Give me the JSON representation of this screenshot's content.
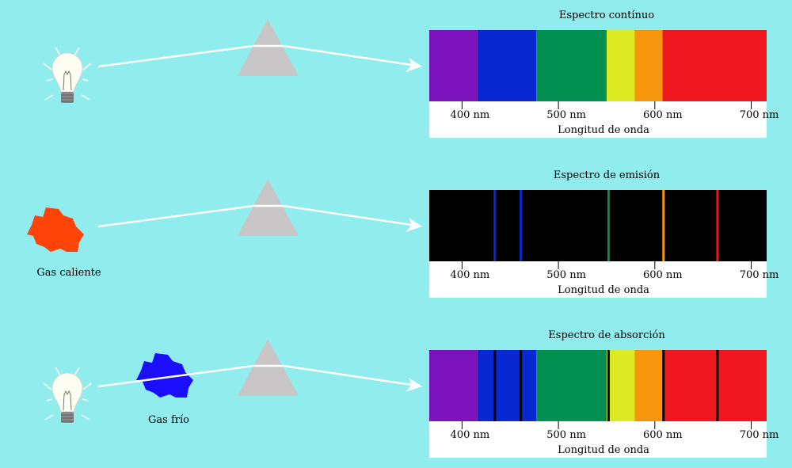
{
  "panels": [
    {
      "id": "continuous",
      "title": "Espectro contínuo",
      "source": "bulb",
      "mode": "continuous",
      "lines": []
    },
    {
      "id": "emission",
      "title": "Espectro de emisión",
      "source": "hot-gas",
      "source_label": "Gas caliente",
      "mode": "emission",
      "lines": [
        {
          "nm": 434,
          "color": "#0a28d2"
        },
        {
          "nm": 461,
          "color": "#0a28d2"
        },
        {
          "nm": 552,
          "color": "#028f52"
        },
        {
          "nm": 609,
          "color": "#f7960c"
        },
        {
          "nm": 665,
          "color": "#e7151e"
        }
      ]
    },
    {
      "id": "absorption",
      "title": "Espectro de absorción",
      "source": "bulb",
      "cold_gas_label": "Gas frío",
      "mode": "absorption",
      "lines": [
        {
          "nm": 434,
          "color": "#000000"
        },
        {
          "nm": 461,
          "color": "#000000"
        },
        {
          "nm": 552,
          "color": "#000000"
        },
        {
          "nm": 609,
          "color": "#000000"
        },
        {
          "nm": 665,
          "color": "#000000"
        }
      ]
    }
  ],
  "bands": [
    {
      "from": 366,
      "to": 416,
      "color": "#7b12bd"
    },
    {
      "from": 416,
      "to": 477,
      "color": "#0a28d2"
    },
    {
      "from": 477,
      "to": 550,
      "color": "#028f52"
    },
    {
      "from": 550,
      "to": 579,
      "color": "#dde922"
    },
    {
      "from": 579,
      "to": 608,
      "color": "#f7960c"
    },
    {
      "from": 608,
      "to": 716,
      "color": "#f01620"
    }
  ],
  "axis": {
    "min_nm": 366,
    "max_nm": 716,
    "ticks": [
      400,
      500,
      600,
      700
    ],
    "tick_labels": [
      "400 nm",
      "500 nm",
      "600 nm",
      "700 nm"
    ],
    "xlabel": "Longitud de onda"
  },
  "colors": {
    "background": "#91ecee",
    "prism": "#c8c6c6",
    "ray": "#ffffff",
    "hot_gas": "#fe4408",
    "cold_gas": "#1a0efd",
    "bulb_glass": "#fdfdf2",
    "bulb_base": "#8a8a8a"
  }
}
